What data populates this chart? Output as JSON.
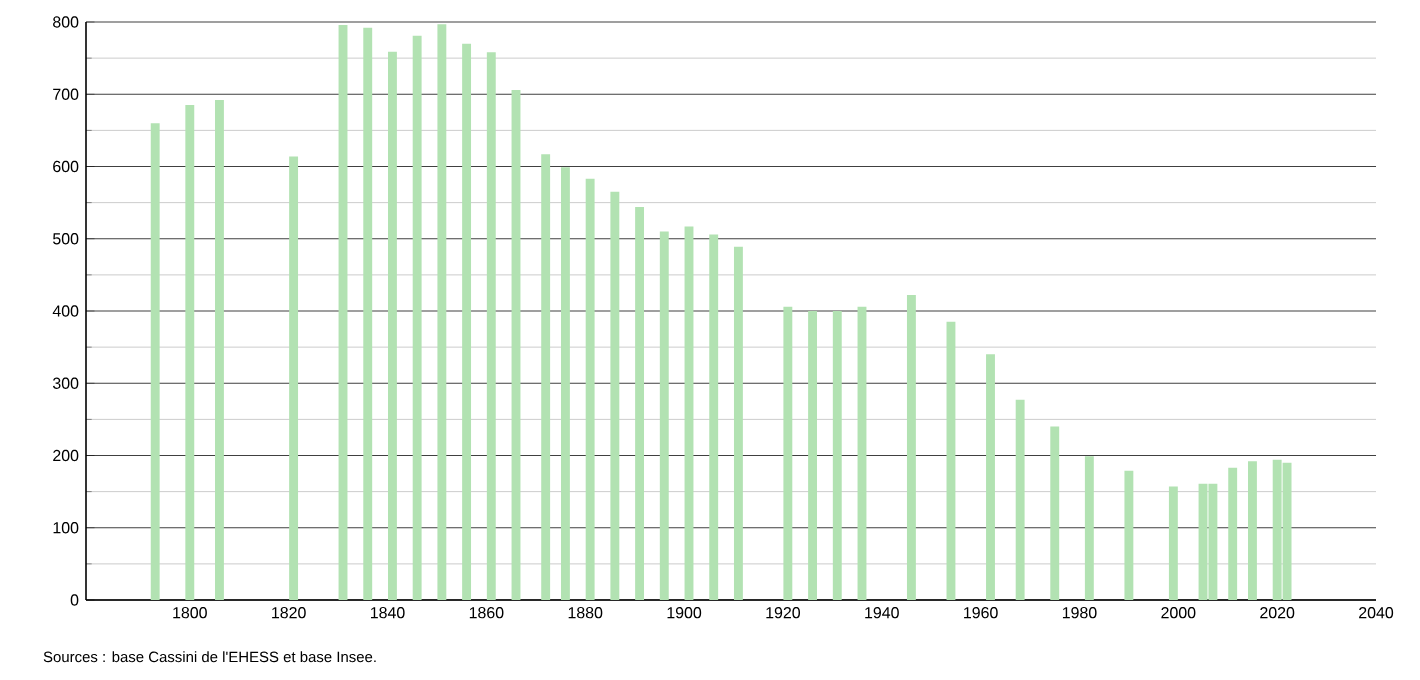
{
  "chart_data": {
    "type": "bar",
    "color": "#b2e2b2",
    "x": [
      1793,
      1800,
      1806,
      1821,
      1831,
      1836,
      1841,
      1846,
      1851,
      1856,
      1861,
      1866,
      1872,
      1876,
      1881,
      1886,
      1891,
      1896,
      1901,
      1906,
      1911,
      1921,
      1926,
      1931,
      1936,
      1946,
      1954,
      1962,
      1968,
      1975,
      1982,
      1990,
      1999,
      2005,
      2007,
      2011,
      2015,
      2020,
      2022
    ],
    "values": [
      660,
      685,
      692,
      614,
      796,
      792,
      759,
      781,
      797,
      770,
      758,
      706,
      617,
      599,
      583,
      565,
      544,
      510,
      517,
      506,
      489,
      406,
      400,
      400,
      406,
      422,
      385,
      340,
      277,
      240,
      199,
      179,
      157,
      161,
      161,
      183,
      192,
      194,
      190
    ],
    "xlim": [
      1779,
      2040
    ],
    "xticks": [
      1800,
      1820,
      1840,
      1860,
      1880,
      1900,
      1920,
      1940,
      1960,
      1980,
      2000,
      2020,
      2040
    ],
    "ylim": [
      0,
      800
    ],
    "yticks": [
      0,
      100,
      200,
      300,
      400,
      500,
      600,
      700,
      800
    ],
    "grid": "y",
    "annotations": [
      "Sources : base Cassini de l'EHESS et base Insee."
    ]
  }
}
